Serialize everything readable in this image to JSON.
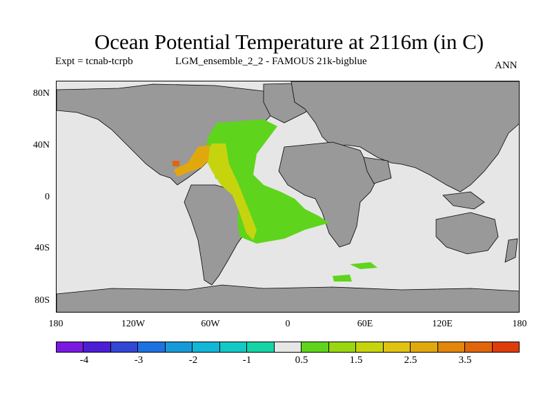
{
  "title": "Ocean Potential Temperature at 2116m (in C)",
  "experiment": "Expt = tcnab-tcrpb",
  "run_name": "LGM_ensemble_2_2 - FAMOUS 21k-bigblue",
  "season": "ANN",
  "colors": {
    "land": "#999999",
    "ocean_neutral": "#e6e6e6",
    "coast": "#000000"
  },
  "map": {
    "lat_labels": [
      "80N",
      "40N",
      "0",
      "40S",
      "80S"
    ],
    "lon_labels": [
      "180",
      "120W",
      "60W",
      "0",
      "60E",
      "120E",
      "180"
    ]
  },
  "colorbar": {
    "boxes": [
      "#7a1ae0",
      "#4b1fd6",
      "#3346d6",
      "#1e72e0",
      "#189ad8",
      "#12b6d6",
      "#13c9c6",
      "#15d4a6",
      "#e6e6e6",
      "#5fd41c",
      "#99d611",
      "#c6d40e",
      "#e0c210",
      "#e1a80e",
      "#e2860c",
      "#e0660c",
      "#df3c0c"
    ],
    "labels": [
      "-4",
      "-3",
      "-2",
      "-1",
      "0.5",
      "1.5",
      "2.5",
      "3.5"
    ]
  }
}
